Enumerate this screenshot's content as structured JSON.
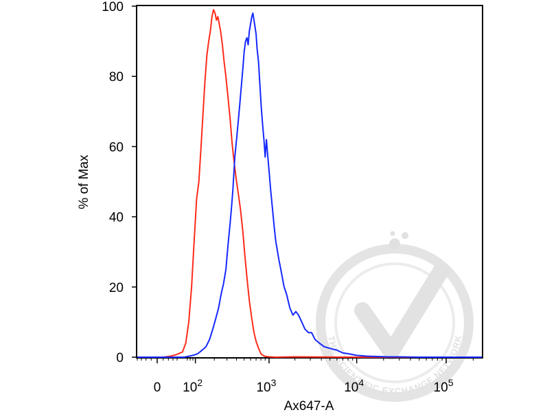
{
  "chart_data": {
    "type": "line",
    "title": "",
    "xlabel": "Ax647-A",
    "ylabel": "% of Max",
    "xscale": "biexponential",
    "xlim": [
      -40,
      250000
    ],
    "ylim": [
      0,
      100
    ],
    "grid": false,
    "legend": "none",
    "y_ticks": [
      {
        "value": 0,
        "label": "0"
      },
      {
        "value": 20,
        "label": "20"
      },
      {
        "value": 40,
        "label": "40"
      },
      {
        "value": 60,
        "label": "60"
      },
      {
        "value": 80,
        "label": "80"
      },
      {
        "value": 100,
        "label": "100"
      }
    ],
    "x_ticks": [
      {
        "value": 0,
        "label": "0",
        "sup": ""
      },
      {
        "value": 100,
        "label": "10",
        "sup": "2"
      },
      {
        "value": 1000,
        "label": "10",
        "sup": "3"
      },
      {
        "value": 10000,
        "label": "10",
        "sup": "4"
      },
      {
        "value": 100000,
        "label": "10",
        "sup": "5"
      }
    ],
    "series": [
      {
        "color": "#ff2a1a",
        "x": [
          -40,
          10,
          25,
          40,
          55,
          65,
          75,
          85,
          95,
          105,
          115,
          125,
          135,
          145,
          155,
          165,
          175,
          185,
          195,
          205,
          215,
          225,
          235,
          245,
          260,
          275,
          290,
          310,
          330,
          350,
          375,
          400,
          425,
          450,
          480,
          510,
          545,
          580,
          620,
          660,
          700,
          750,
          800,
          860,
          920,
          1000,
          1200,
          2000,
          10000,
          250000
        ],
        "y": [
          0,
          0,
          0.3,
          0.8,
          1.5,
          4,
          10,
          20,
          33,
          45,
          50,
          60,
          70,
          79,
          86,
          90,
          93,
          97,
          99,
          98,
          96,
          97,
          95,
          93,
          89,
          84,
          80,
          74,
          68,
          61,
          55,
          50,
          46,
          42,
          36,
          29,
          22,
          16,
          11,
          7,
          4.5,
          2.5,
          1,
          0.4,
          0.2,
          0.1,
          0,
          0.1,
          0,
          0
        ]
      },
      {
        "color": "#1428ff",
        "x": [
          -40,
          60,
          90,
          110,
          130,
          150,
          170,
          190,
          210,
          230,
          250,
          270,
          290,
          310,
          330,
          345,
          360,
          380,
          400,
          420,
          440,
          460,
          480,
          500,
          520,
          540,
          560,
          580,
          600,
          620,
          640,
          660,
          680,
          700,
          720,
          750,
          780,
          810,
          840,
          870,
          900,
          930,
          960,
          1000,
          1050,
          1100,
          1150,
          1200,
          1300,
          1400,
          1500,
          1600,
          1750,
          1900,
          2050,
          2200,
          2400,
          2600,
          2850,
          3100,
          3400,
          3800,
          4300,
          5000,
          6000,
          7000,
          8000,
          10000,
          13000,
          17000,
          22000,
          30000,
          50000,
          250000
        ],
        "y": [
          0,
          0,
          0.5,
          1,
          2,
          3,
          5,
          8,
          11,
          14,
          18,
          21,
          25,
          32,
          38,
          43,
          48,
          57,
          62,
          67,
          72,
          77,
          82,
          87,
          90,
          91,
          89,
          93,
          95,
          97,
          98,
          96,
          94,
          92,
          88,
          84,
          77,
          71,
          66,
          62,
          57,
          62,
          58,
          53,
          47,
          42,
          37,
          33,
          28,
          24,
          20,
          18,
          14,
          12,
          13,
          12,
          10,
          8,
          7,
          7,
          5,
          4,
          3,
          2.5,
          2,
          1.2,
          1,
          0.5,
          0.3,
          0.2,
          0.1,
          0.1,
          0,
          0
        ]
      }
    ]
  },
  "watermark": {
    "text": "THE SCIENTIFIC EXCHANGE NETWORK",
    "color": "#e3e3e3"
  }
}
